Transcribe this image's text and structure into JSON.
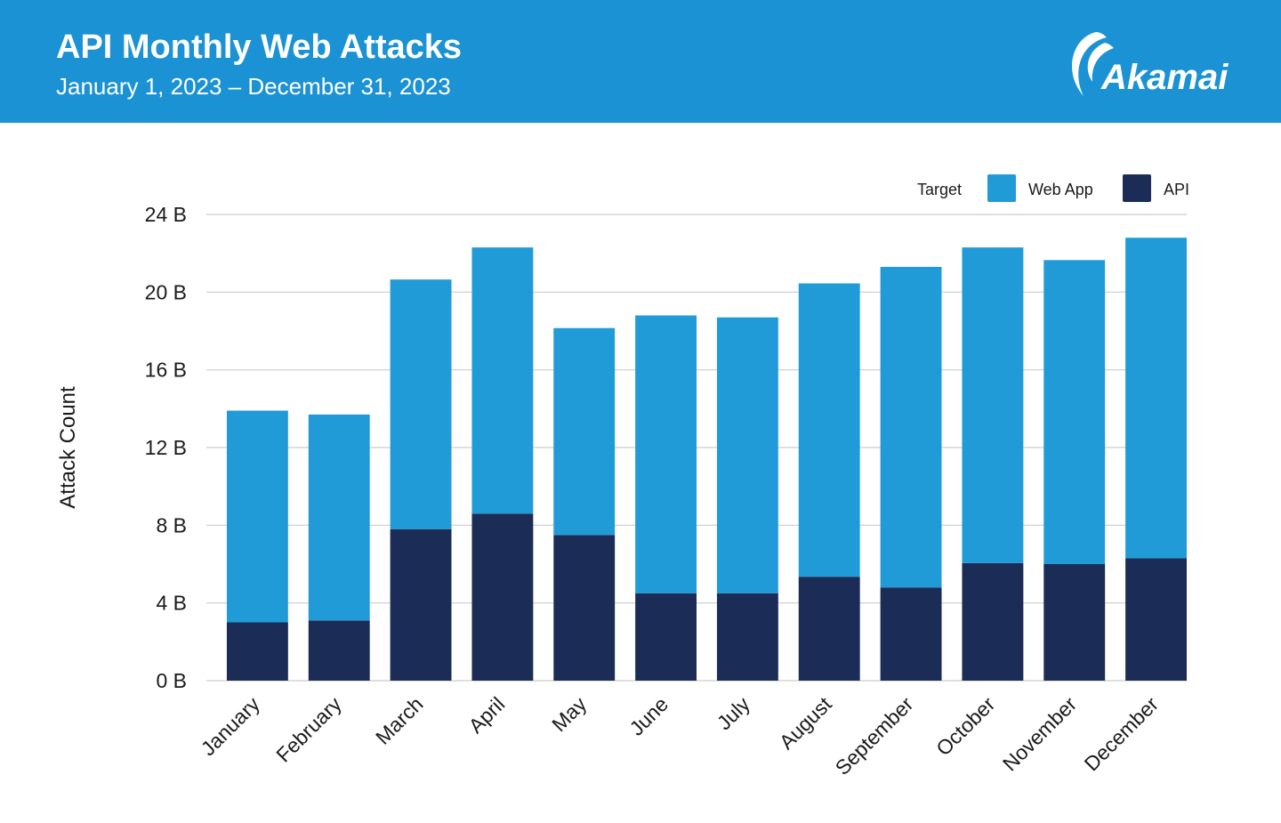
{
  "header": {
    "title": "API Monthly Web Attacks",
    "subtitle": "January 1, 2023 – December 31, 2023",
    "logo_text": "Akamai",
    "background_color": "#1b92d3"
  },
  "chart_data": {
    "type": "bar",
    "stacked": true,
    "title": "API Monthly Web Attacks",
    "subtitle": "January 1, 2023 – December 31, 2023",
    "xlabel": "",
    "ylabel": "Attack Count",
    "ylim": [
      0,
      24
    ],
    "yticks": [
      0,
      4,
      8,
      12,
      16,
      20,
      24
    ],
    "ytick_labels": [
      "0 B",
      "4 B",
      "8 B",
      "12 B",
      "16 B",
      "20 B",
      "24 B"
    ],
    "grid": true,
    "legend": {
      "title": "Target",
      "position": "top-right"
    },
    "categories": [
      "January",
      "February",
      "March",
      "April",
      "May",
      "June",
      "July",
      "August",
      "September",
      "October",
      "November",
      "December"
    ],
    "series": [
      {
        "name": "API",
        "color": "#1b2d57",
        "values": [
          3.0,
          3.1,
          7.8,
          8.6,
          7.5,
          4.5,
          4.5,
          5.35,
          4.8,
          6.05,
          6.0,
          6.3
        ]
      },
      {
        "name": "Web App",
        "color": "#219bd8",
        "values": [
          10.9,
          10.6,
          12.85,
          13.7,
          10.65,
          14.3,
          14.2,
          15.1,
          16.5,
          16.25,
          15.65,
          16.5
        ]
      }
    ]
  }
}
